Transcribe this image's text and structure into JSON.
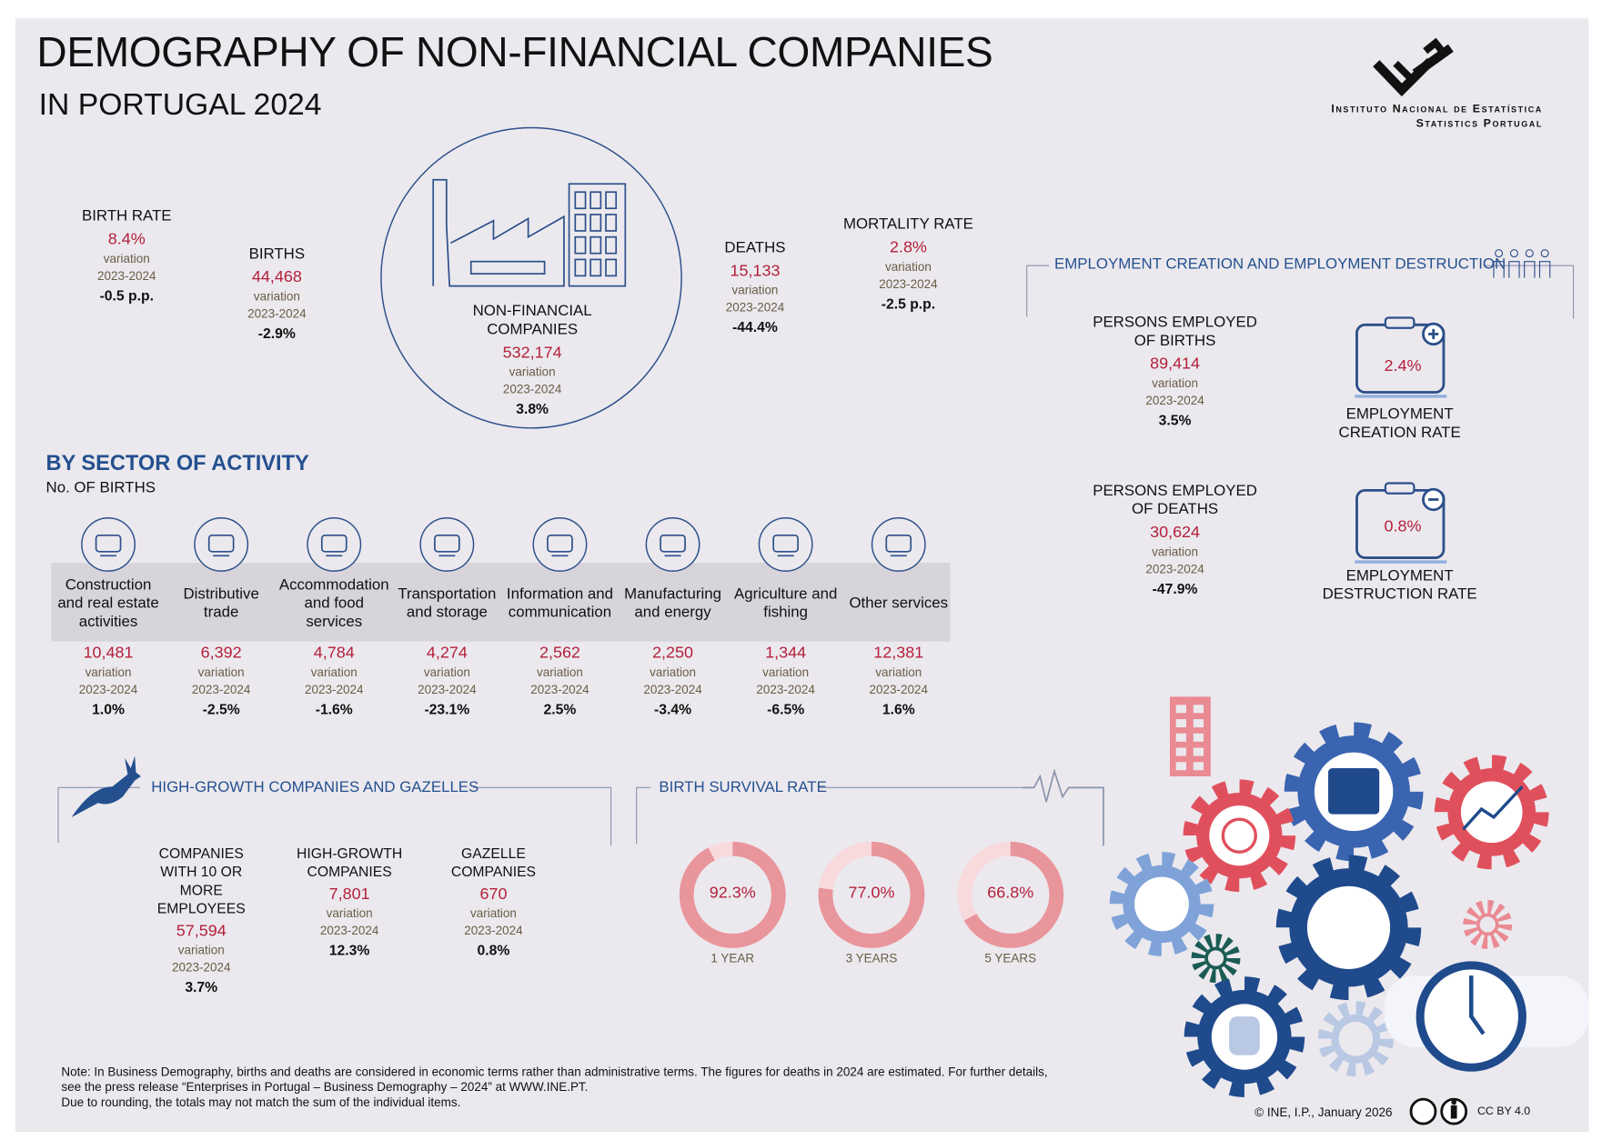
{
  "header": {
    "title": "DEMOGRAPHY OF NON-FINANCIAL COMPANIES",
    "subtitle": "IN PORTUGAL 2024",
    "org": "Instituto Nacional de Estatística",
    "org_en": "Statistics Portugal"
  },
  "labels": {
    "variation": "variation",
    "period": "2023-2024"
  },
  "overview": {
    "birth_rate": {
      "label": "BIRTH RATE",
      "value": "8.4%",
      "variation": "-0.5 p.p."
    },
    "births": {
      "label": "BIRTHS",
      "value": "44,468",
      "variation": "-2.9%"
    },
    "companies": {
      "label": "NON-FINANCIAL COMPANIES",
      "value": "532,174",
      "variation": "3.8%"
    },
    "deaths": {
      "label": "DEATHS",
      "value": "15,133",
      "variation": "-44.4%"
    },
    "mortality_rate": {
      "label": "MORTALITY RATE",
      "value": "2.8%",
      "variation": "-2.5 p.p."
    }
  },
  "employment": {
    "title": "EMPLOYMENT CREATION AND EMPLOYMENT DESTRUCTION",
    "births": {
      "label": "PERSONS EMPLOYED OF BIRTHS",
      "value": "89,414",
      "variation": "3.5%"
    },
    "creation": {
      "value": "2.4%",
      "label": "EMPLOYMENT CREATION RATE"
    },
    "deaths": {
      "label": "PERSONS EMPLOYED OF DEATHS",
      "value": "30,624",
      "variation": "-47.9%"
    },
    "destruction": {
      "value": "0.8%",
      "label": "EMPLOYMENT DESTRUCTION RATE"
    }
  },
  "sectors": {
    "title": "BY SECTOR OF ACTIVITY",
    "subtitle": "No. OF BIRTHS",
    "items": [
      {
        "name": "Construction and real estate activities",
        "value": "10,481",
        "variation": "1.0%"
      },
      {
        "name": "Distributive trade",
        "value": "6,392",
        "variation": "-2.5%"
      },
      {
        "name": "Accommodation and food services",
        "value": "4,784",
        "variation": "-1.6%"
      },
      {
        "name": "Transportation and storage",
        "value": "4,274",
        "variation": "-23.1%"
      },
      {
        "name": "Information and communication",
        "value": "2,562",
        "variation": "2.5%"
      },
      {
        "name": "Manufacturing and energy",
        "value": "2,250",
        "variation": "-3.4%"
      },
      {
        "name": "Agriculture and fishing",
        "value": "1,344",
        "variation": "-6.5%"
      },
      {
        "name": "Other services",
        "value": "12,381",
        "variation": "1.6%"
      }
    ]
  },
  "high_growth": {
    "title": "HIGH-GROWTH COMPANIES AND GAZELLES",
    "items": [
      {
        "label": "COMPANIES WITH 10 OR MORE EMPLOYEES",
        "value": "57,594",
        "variation": "3.7%"
      },
      {
        "label": "HIGH-GROWTH COMPANIES",
        "value": "7,801",
        "variation": "12.3%"
      },
      {
        "label": "GAZELLE COMPANIES",
        "value": "670",
        "variation": "0.8%"
      }
    ]
  },
  "survival": {
    "title": "BIRTH SURVIVAL RATE",
    "type": "donut",
    "categories": [
      "1 YEAR",
      "3 YEARS",
      "5 YEARS"
    ],
    "values": [
      92.3,
      77.0,
      66.8
    ],
    "value_labels": [
      "92.3%",
      "77.0%",
      "66.8%"
    ],
    "ylim": [
      0,
      100
    ],
    "color": "#e9959c",
    "track_color": "#f8dadd"
  },
  "footer": {
    "note": [
      "Note: In Business Demography, births and deaths are considered in economic terms rather than administrative terms. The figures for deaths in 2024 are estimated. For further details,",
      "see the press release “Enterprises in Portugal – Business Demography – 2024” at WWW.INE.PT.",
      "Due to rounding, the totals may not match the sum of the individual items."
    ],
    "copyright": "© INE, I.P., January 2026",
    "license": "CC BY 4.0"
  }
}
